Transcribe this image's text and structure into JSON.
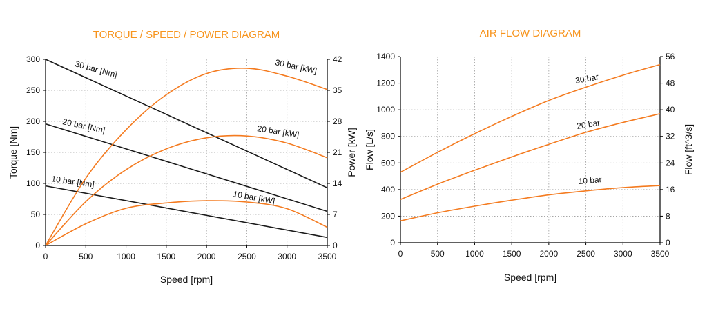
{
  "chart_data": [
    {
      "type": "line",
      "title": "TORQUE / SPEED / POWER DIAGRAM",
      "xlabel": "Speed [rpm]",
      "ylabel": "Torque [Nm]",
      "y2label": "Power [kW]",
      "xlim": [
        0,
        3500
      ],
      "ylim": [
        0,
        300
      ],
      "y2lim": [
        0,
        42
      ],
      "xticks": [
        "0",
        "500",
        "1000",
        "1500",
        "2000",
        "2500",
        "3000",
        "3500"
      ],
      "yticks": [
        "0",
        "50",
        "100",
        "150",
        "200",
        "250",
        "300"
      ],
      "y2ticks": [
        "0",
        "7",
        "14",
        "21",
        "28",
        "35",
        "42"
      ],
      "grid": true,
      "series": [
        {
          "name": "30 bar [Nm]",
          "axis": "left",
          "color": "#1a1a1a",
          "x": [
            0,
            3500
          ],
          "values": [
            300,
            93
          ]
        },
        {
          "name": "20 bar [Nm]",
          "axis": "left",
          "color": "#1a1a1a",
          "x": [
            0,
            3500
          ],
          "values": [
            196,
            55
          ]
        },
        {
          "name": "10 bar [Nm]",
          "axis": "left",
          "color": "#1a1a1a",
          "x": [
            0,
            3500
          ],
          "values": [
            96,
            13
          ]
        },
        {
          "name": "30 bar [kW]",
          "axis": "right",
          "color": "#f47b20",
          "x": [
            0,
            500,
            1000,
            1500,
            2000,
            2500,
            3000,
            3500
          ],
          "values": [
            0,
            15.2,
            26.1,
            34.0,
            38.8,
            40.0,
            38.2,
            35.2
          ]
        },
        {
          "name": "20 bar [kW]",
          "axis": "right",
          "color": "#f47b20",
          "x": [
            0,
            500,
            1000,
            1500,
            2000,
            2500,
            3000,
            3500
          ],
          "values": [
            0,
            9.9,
            17.1,
            21.8,
            24.3,
            24.7,
            23.1,
            19.8
          ]
        },
        {
          "name": "10 bar [kW]",
          "axis": "right",
          "color": "#f47b20",
          "x": [
            0,
            500,
            1000,
            1500,
            2000,
            2500,
            3000,
            3500
          ],
          "values": [
            0,
            4.9,
            8.4,
            9.6,
            10.1,
            9.8,
            8.3,
            4.1
          ]
        }
      ]
    },
    {
      "type": "line",
      "title": "AIR FLOW DIAGRAM",
      "xlabel": "Speed [rpm]",
      "ylabel": "Flow [L/s]",
      "y2label": "Flow [ft^3/s]",
      "xlim": [
        0,
        3500
      ],
      "ylim": [
        0,
        1400
      ],
      "y2lim": [
        0,
        56
      ],
      "xticks": [
        "0",
        "500",
        "1000",
        "1500",
        "2000",
        "2500",
        "3000",
        "3500"
      ],
      "yticks": [
        "0",
        "200",
        "400",
        "600",
        "800",
        "1000",
        "1200",
        "1400"
      ],
      "y2ticks": [
        "0",
        "8",
        "16",
        "24",
        "32",
        "40",
        "48",
        "56"
      ],
      "grid": true,
      "series": [
        {
          "name": "30 bar",
          "color": "#f47b20",
          "x": [
            0,
            500,
            1000,
            1500,
            2000,
            2500,
            3000,
            3500
          ],
          "values": [
            530,
            680,
            820,
            950,
            1070,
            1170,
            1260,
            1340
          ]
        },
        {
          "name": "20 bar",
          "color": "#f47b20",
          "x": [
            0,
            500,
            1000,
            1500,
            2000,
            2500,
            3000,
            3500
          ],
          "values": [
            325,
            440,
            545,
            645,
            740,
            830,
            905,
            970
          ]
        },
        {
          "name": "10 bar",
          "color": "#f47b20",
          "x": [
            0,
            500,
            1000,
            1500,
            2000,
            2500,
            3000,
            3500
          ],
          "values": [
            165,
            225,
            275,
            320,
            360,
            390,
            415,
            430
          ]
        }
      ]
    }
  ]
}
